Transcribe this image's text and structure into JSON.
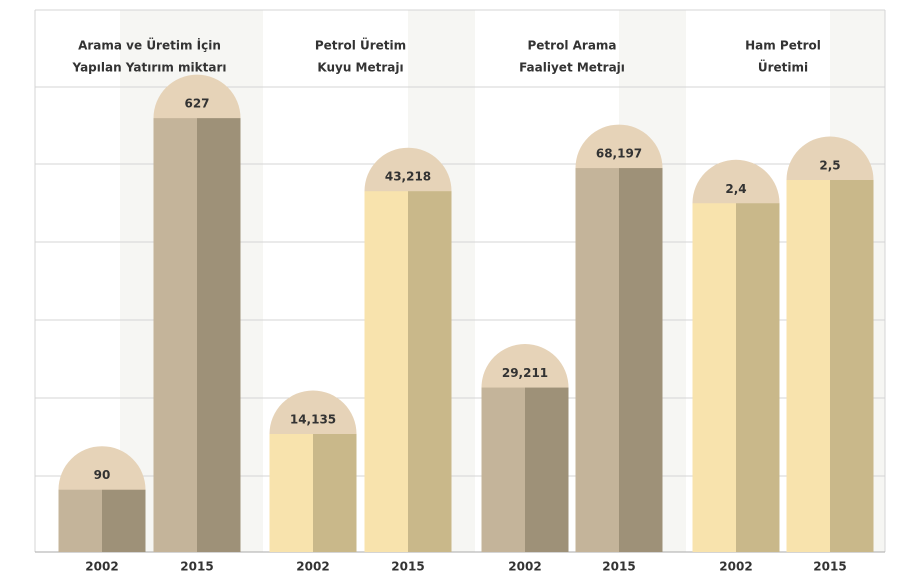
{
  "chart_data": [
    {
      "type": "bar",
      "title": [
        "Arama ve Üretim İçin",
        "Yapılan Yatırım miktarı"
      ],
      "categories": [
        "2002",
        "2015"
      ],
      "values": [
        90,
        627
      ],
      "value_labels": [
        "90",
        "627"
      ],
      "colors": [
        "#c4b49a",
        "#9e9178"
      ],
      "ylim": [
        0,
        672
      ]
    },
    {
      "type": "bar",
      "title": [
        "Petrol Üretim",
        "Kuyu Metrajı"
      ],
      "categories": [
        "2002",
        "2015"
      ],
      "values": [
        14135,
        43218
      ],
      "value_labels": [
        "14,135",
        "43,218"
      ],
      "colors": [
        "#f8e3ad",
        "#c9b88a"
      ],
      "ylim": [
        0,
        55700
      ]
    },
    {
      "type": "bar",
      "title": [
        "Petrol Arama",
        "Faaliyet Metrajı"
      ],
      "categories": [
        "2002",
        "2015"
      ],
      "values": [
        29211,
        68197
      ],
      "value_labels": [
        "29,211",
        "68,197"
      ],
      "colors": [
        "#c4b49a",
        "#9e9178"
      ],
      "ylim": [
        0,
        82600
      ]
    },
    {
      "type": "bar",
      "title": [
        "Ham Petrol",
        "Üretimi"
      ],
      "categories": [
        "2002",
        "2015"
      ],
      "values": [
        2.4,
        2.5
      ],
      "value_labels": [
        "2,4",
        "2,5"
      ],
      "colors": [
        "#f8e3ad",
        "#c9b88a"
      ],
      "ylim": [
        0.9,
        2.9
      ]
    }
  ]
}
